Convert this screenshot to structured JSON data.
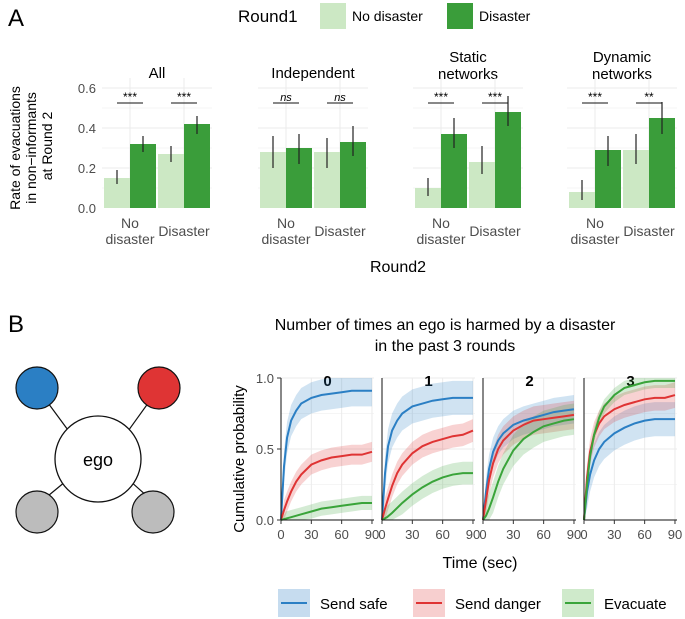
{
  "panel_a": {
    "label": "A",
    "legend_title": "Round1",
    "legend_items": [
      "No disaster",
      "Disaster"
    ],
    "y_label_lines": [
      "Rate of evacuations",
      "in non−informants",
      "at Round 2"
    ],
    "x_label": "Round2"
  },
  "panel_b": {
    "label": "B",
    "title_lines": [
      "Number of times an ego is harmed by a disaster",
      "in the past 3 rounds"
    ],
    "diagram": {
      "center_label": "ego"
    },
    "y_label": "Cumulative probability",
    "x_label": "Time (sec)",
    "legend_items": [
      "Send safe",
      "Send danger",
      "Evacuate"
    ]
  },
  "colors": {
    "light_green": "#cce8c4",
    "dark_green": "#3a9d3a",
    "blue": "#2b7fc4",
    "red": "#df3434",
    "green_line": "#3aa43a",
    "grey_node": "#bcbcbc"
  },
  "chart_data": [
    {
      "type": "bar",
      "title": "Rate of evacuations in non-informants at Round 2",
      "xlabel": "Round2",
      "ylabel": "Rate of evacuations in non−informants at Round 2",
      "ylim": [
        0,
        0.6
      ],
      "y_ticks": [
        0.0,
        0.2,
        0.4,
        0.6
      ],
      "y_tick_labels": [
        "0.0",
        "0.2",
        "0.4",
        "0.6"
      ],
      "legend": {
        "title": "Round1",
        "position": "top"
      },
      "facets": [
        {
          "title": "All",
          "categories": [
            "No\ndisaster",
            "Disaster"
          ],
          "series": [
            {
              "name": "No disaster",
              "values": [
                0.15,
                0.27
              ],
              "err_low": [
                0.12,
                0.23
              ],
              "err_high": [
                0.19,
                0.31
              ]
            },
            {
              "name": "Disaster",
              "values": [
                0.32,
                0.42
              ],
              "err_low": [
                0.28,
                0.37
              ],
              "err_high": [
                0.36,
                0.46
              ]
            }
          ],
          "significance": [
            "***",
            "***"
          ]
        },
        {
          "title": "Independent",
          "categories": [
            "No\ndisaster",
            "Disaster"
          ],
          "series": [
            {
              "name": "No disaster",
              "values": [
                0.28,
                0.28
              ],
              "err_low": [
                0.2,
                0.2
              ],
              "err_high": [
                0.36,
                0.35
              ]
            },
            {
              "name": "Disaster",
              "values": [
                0.3,
                0.33
              ],
              "err_low": [
                0.22,
                0.26
              ],
              "err_high": [
                0.37,
                0.41
              ]
            }
          ],
          "significance": [
            "ns",
            "ns"
          ]
        },
        {
          "title": "Static\nnetworks",
          "categories": [
            "No\ndisaster",
            "Disaster"
          ],
          "series": [
            {
              "name": "No disaster",
              "values": [
                0.1,
                0.23
              ],
              "err_low": [
                0.06,
                0.17
              ],
              "err_high": [
                0.15,
                0.31
              ]
            },
            {
              "name": "Disaster",
              "values": [
                0.37,
                0.48
              ],
              "err_low": [
                0.3,
                0.41
              ],
              "err_high": [
                0.45,
                0.56
              ]
            }
          ],
          "significance": [
            "***",
            "***"
          ]
        },
        {
          "title": "Dynamic\nnetworks",
          "categories": [
            "No\ndisaster",
            "Disaster"
          ],
          "series": [
            {
              "name": "No disaster",
              "values": [
                0.08,
                0.29
              ],
              "err_low": [
                0.04,
                0.22
              ],
              "err_high": [
                0.14,
                0.37
              ]
            },
            {
              "name": "Disaster",
              "values": [
                0.29,
                0.45
              ],
              "err_low": [
                0.21,
                0.37
              ],
              "err_high": [
                0.36,
                0.53
              ]
            }
          ],
          "significance": [
            "***",
            "**"
          ]
        }
      ]
    },
    {
      "type": "line",
      "title": "Number of times an ego is harmed by a disaster in the past 3 rounds",
      "xlabel": "Time (sec)",
      "ylabel": "Cumulative probability",
      "xlim": [
        0,
        92
      ],
      "ylim": [
        0,
        1.0
      ],
      "x_ticks": [
        0,
        30,
        60,
        90
      ],
      "y_ticks": [
        0.0,
        0.5,
        1.0
      ],
      "y_tick_labels": [
        "0.0",
        "0.5",
        "1.0"
      ],
      "legend": {
        "position": "bottom"
      },
      "facets": [
        {
          "title": "0",
          "series": [
            {
              "name": "Send safe",
              "x": [
                0,
                3,
                6,
                10,
                15,
                20,
                30,
                40,
                50,
                60,
                70,
                80,
                90
              ],
              "y": [
                0,
                0.38,
                0.58,
                0.7,
                0.77,
                0.82,
                0.86,
                0.88,
                0.89,
                0.9,
                0.91,
                0.91,
                0.91
              ],
              "band": 0.11
            },
            {
              "name": "Send danger",
              "x": [
                0,
                3,
                6,
                10,
                15,
                20,
                30,
                40,
                50,
                60,
                70,
                80,
                90
              ],
              "y": [
                0,
                0.07,
                0.13,
                0.2,
                0.27,
                0.32,
                0.39,
                0.42,
                0.44,
                0.45,
                0.46,
                0.46,
                0.48
              ],
              "band": 0.07
            },
            {
              "name": "Evacuate",
              "x": [
                0,
                5,
                10,
                20,
                30,
                40,
                50,
                60,
                70,
                80,
                90
              ],
              "y": [
                0,
                0.01,
                0.02,
                0.04,
                0.06,
                0.08,
                0.09,
                0.1,
                0.11,
                0.12,
                0.12
              ],
              "band": 0.05
            }
          ]
        },
        {
          "title": "1",
          "series": [
            {
              "name": "Send safe",
              "x": [
                0,
                3,
                6,
                10,
                15,
                20,
                30,
                40,
                50,
                60,
                70,
                80,
                90
              ],
              "y": [
                0,
                0.33,
                0.52,
                0.63,
                0.7,
                0.75,
                0.8,
                0.82,
                0.84,
                0.85,
                0.86,
                0.86,
                0.86
              ],
              "band": 0.12
            },
            {
              "name": "Send danger",
              "x": [
                0,
                3,
                6,
                10,
                15,
                20,
                30,
                40,
                50,
                60,
                70,
                80,
                90
              ],
              "y": [
                0,
                0.08,
                0.15,
                0.24,
                0.33,
                0.39,
                0.47,
                0.52,
                0.55,
                0.57,
                0.59,
                0.6,
                0.63
              ],
              "band": 0.08
            },
            {
              "name": "Evacuate",
              "x": [
                0,
                5,
                10,
                20,
                30,
                40,
                50,
                60,
                70,
                80,
                90
              ],
              "y": [
                0,
                0.02,
                0.05,
                0.12,
                0.18,
                0.23,
                0.27,
                0.3,
                0.32,
                0.33,
                0.33
              ],
              "band": 0.08
            }
          ]
        },
        {
          "title": "2",
          "series": [
            {
              "name": "Send safe",
              "x": [
                0,
                3,
                6,
                10,
                15,
                20,
                30,
                40,
                50,
                60,
                70,
                80,
                90
              ],
              "y": [
                0,
                0.2,
                0.36,
                0.48,
                0.56,
                0.61,
                0.67,
                0.7,
                0.72,
                0.74,
                0.76,
                0.77,
                0.78
              ],
              "band": 0.1
            },
            {
              "name": "Send danger",
              "x": [
                0,
                3,
                6,
                10,
                15,
                20,
                30,
                40,
                50,
                60,
                70,
                80,
                90
              ],
              "y": [
                0,
                0.14,
                0.28,
                0.4,
                0.5,
                0.56,
                0.63,
                0.67,
                0.7,
                0.71,
                0.72,
                0.73,
                0.74
              ],
              "band": 0.1
            },
            {
              "name": "Evacuate",
              "x": [
                0,
                3,
                6,
                10,
                15,
                20,
                30,
                40,
                50,
                60,
                70,
                80,
                90
              ],
              "y": [
                0,
                0.03,
                0.08,
                0.16,
                0.27,
                0.36,
                0.49,
                0.57,
                0.62,
                0.66,
                0.68,
                0.7,
                0.71
              ],
              "band": 0.11
            }
          ]
        },
        {
          "title": "3",
          "series": [
            {
              "name": "Send safe",
              "x": [
                0,
                3,
                6,
                10,
                15,
                20,
                30,
                40,
                50,
                60,
                70,
                80,
                90
              ],
              "y": [
                0,
                0.2,
                0.32,
                0.42,
                0.5,
                0.55,
                0.61,
                0.65,
                0.68,
                0.7,
                0.71,
                0.71,
                0.71
              ],
              "band": 0.12
            },
            {
              "name": "Send danger",
              "x": [
                0,
                3,
                6,
                10,
                15,
                20,
                30,
                40,
                50,
                60,
                70,
                80,
                90
              ],
              "y": [
                0,
                0.3,
                0.48,
                0.6,
                0.68,
                0.73,
                0.78,
                0.81,
                0.83,
                0.85,
                0.86,
                0.86,
                0.88
              ],
              "band": 0.09
            },
            {
              "name": "Evacuate",
              "x": [
                0,
                3,
                6,
                10,
                15,
                20,
                30,
                40,
                50,
                60,
                70,
                80,
                90
              ],
              "y": [
                0,
                0.25,
                0.45,
                0.6,
                0.72,
                0.8,
                0.88,
                0.93,
                0.95,
                0.97,
                0.98,
                0.98,
                0.98
              ],
              "band": 0.05
            }
          ]
        }
      ]
    }
  ]
}
